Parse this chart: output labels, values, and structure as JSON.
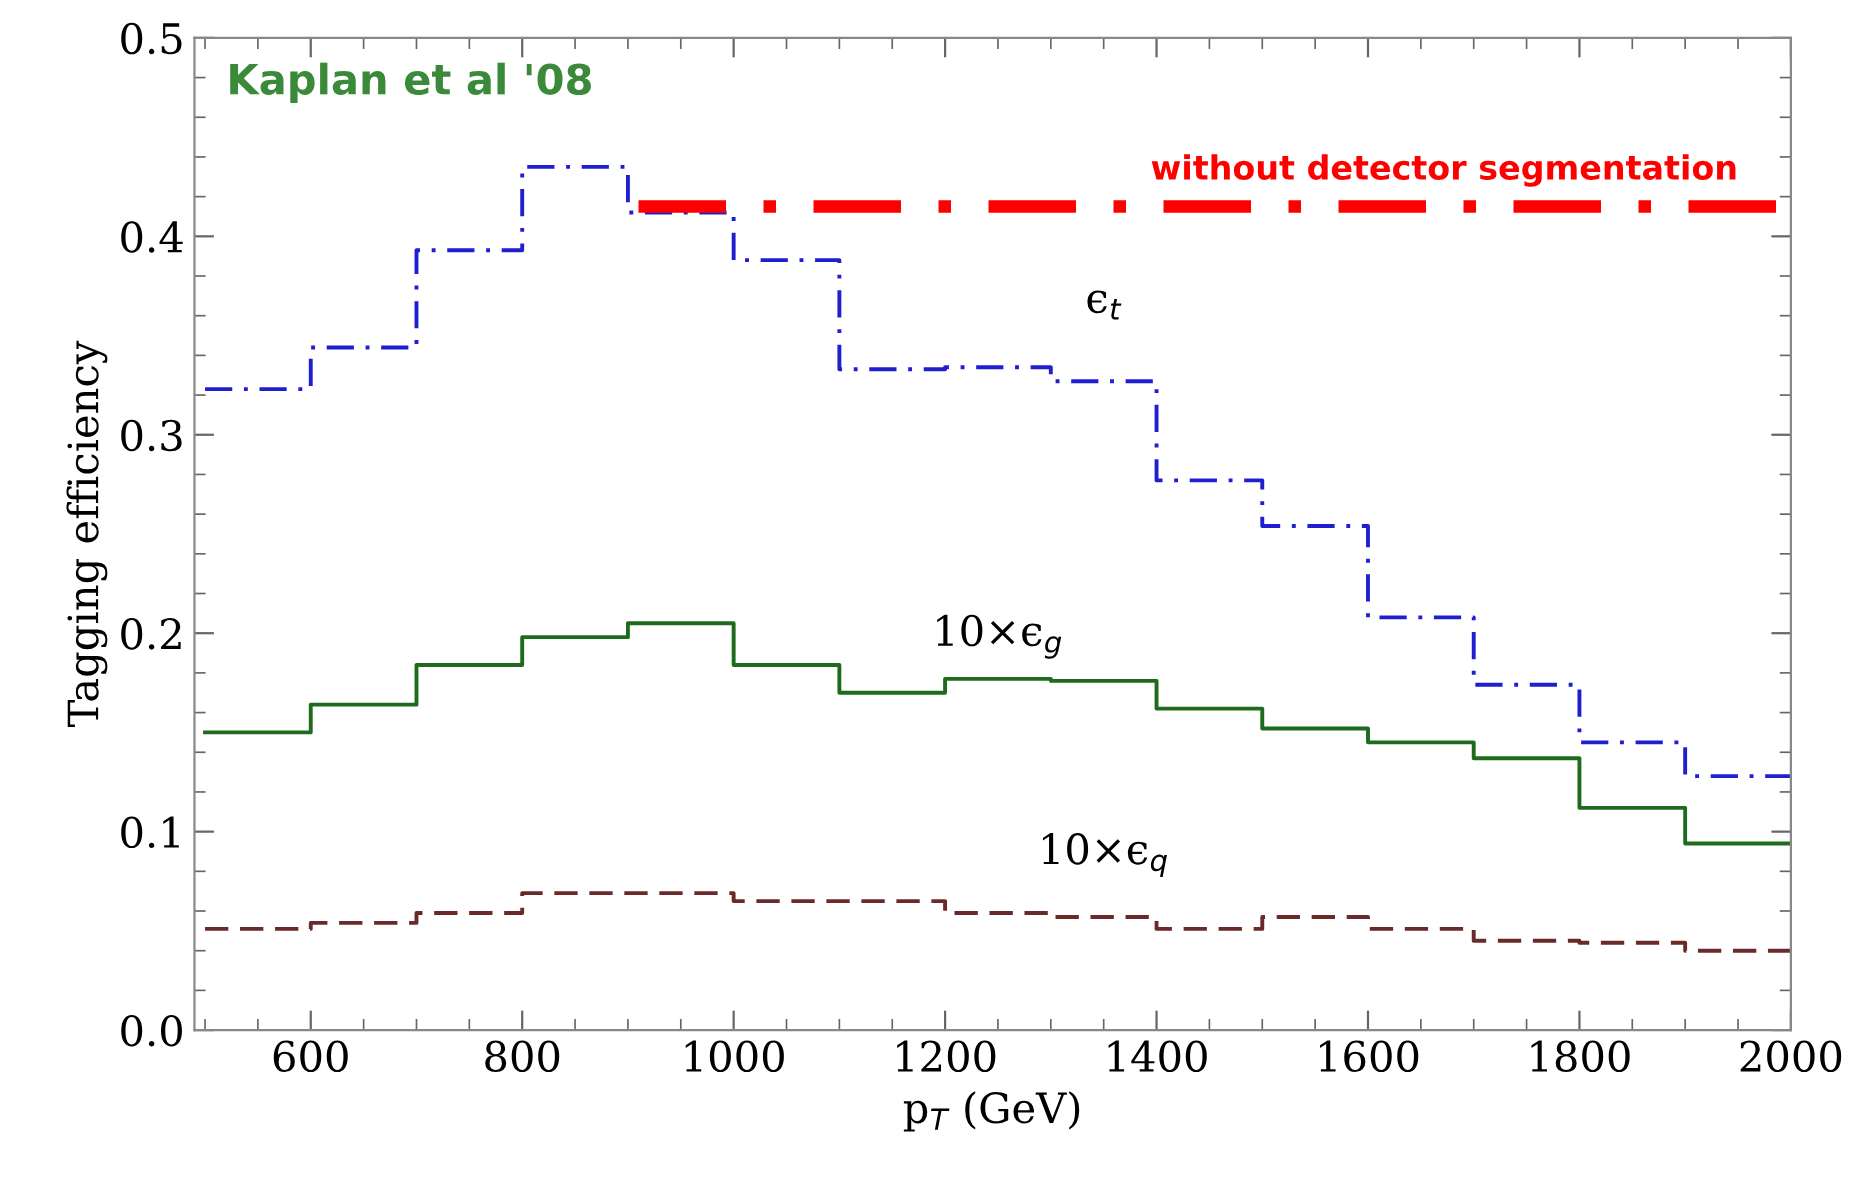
{
  "chart_data": {
    "type": "step",
    "xlabel": "p$_{T}$ (GeV)",
    "ylabel": "Tagging efficiency",
    "x": [
      500,
      600,
      700,
      800,
      900,
      1000,
      1100,
      1200,
      1300,
      1400,
      1500,
      1600,
      1700,
      1800,
      1900,
      2000
    ],
    "series": [
      {
        "name": "ϵ$_{t}$",
        "color": "#1f1fd0",
        "line_style": "dashdot",
        "values": [
          0.323,
          0.344,
          0.393,
          0.435,
          0.412,
          0.388,
          0.333,
          0.334,
          0.327,
          0.277,
          0.254,
          0.208,
          0.174,
          0.145,
          0.128,
          0.128
        ]
      },
      {
        "name": "10×ϵ$_{g}$",
        "color": "#1e6b1e",
        "line_style": "solid",
        "values": [
          0.15,
          0.164,
          0.184,
          0.198,
          0.205,
          0.184,
          0.17,
          0.177,
          0.176,
          0.162,
          0.152,
          0.145,
          0.137,
          0.112,
          0.094,
          0.094
        ]
      },
      {
        "name": "10×ϵ$_{q}$",
        "color": "#6b2a2a",
        "line_style": "dashed",
        "values": [
          0.051,
          0.054,
          0.059,
          0.069,
          0.069,
          0.065,
          0.065,
          0.059,
          0.057,
          0.051,
          0.057,
          0.051,
          0.045,
          0.044,
          0.04,
          0.04
        ]
      },
      {
        "name": "without detector segmentation",
        "type": "line",
        "color": "#ff0000",
        "line_style": "dashdot",
        "x": [
          910,
          2000
        ],
        "values": [
          0.415,
          0.415
        ]
      }
    ],
    "annotations": [
      "Kaplan et al '08"
    ],
    "xlim": [
      490,
      2000
    ],
    "ylim": [
      0,
      0.5
    ],
    "xticks": [
      600,
      800,
      1000,
      1200,
      1400,
      1600,
      1800,
      2000
    ],
    "yticks": [
      {
        "value": 0,
        "label": "0.0"
      },
      {
        "value": 0.1,
        "label": "0.1"
      },
      {
        "value": 0.2,
        "label": "0.2"
      },
      {
        "value": 0.3,
        "label": "0.3"
      },
      {
        "value": 0.4,
        "label": "0.4"
      },
      {
        "value": 0.5,
        "label": "0.5"
      }
    ],
    "grid": false,
    "legend": false
  }
}
